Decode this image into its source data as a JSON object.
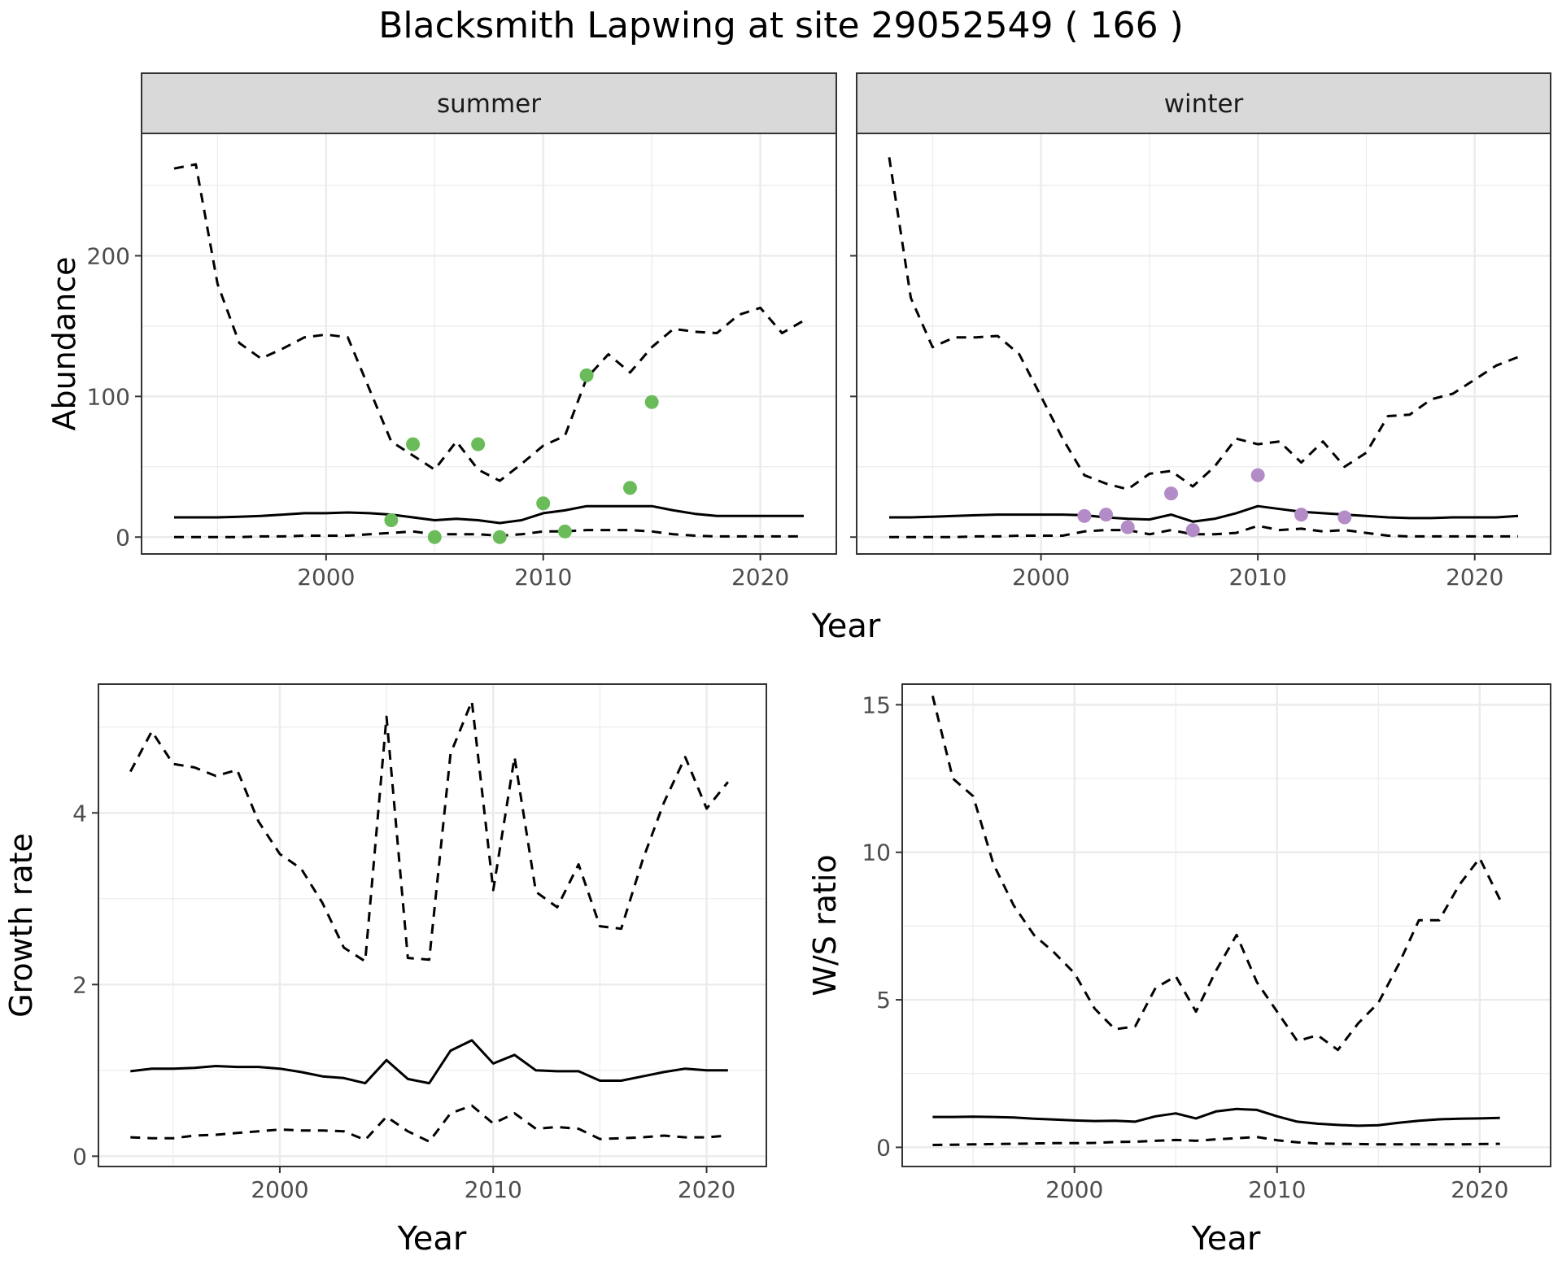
{
  "title": "Blacksmith Lapwing at site 29052549 ( 166 )",
  "colors": {
    "summer_points": "#6abb5a",
    "winter_points": "#b38bc6",
    "strip_bg": "#d9d9d9",
    "grid": "#ebebeb",
    "line": "#000000"
  },
  "chart_data": [
    {
      "type": "line",
      "facet": "summer",
      "strip_label": "summer",
      "xlabel": "Year",
      "ylabel": "Abundance",
      "xlim": [
        1991.5,
        2023.5
      ],
      "ylim": [
        -12,
        287
      ],
      "xticks": [
        2000,
        2010,
        2020
      ],
      "yticks": [
        0,
        100,
        200
      ],
      "grid": true,
      "series": [
        {
          "style": "solid",
          "x": [
            1993,
            1994,
            1995,
            1996,
            1997,
            1998,
            1999,
            2000,
            2001,
            2002,
            2003,
            2004,
            2005,
            2006,
            2007,
            2008,
            2009,
            2010,
            2011,
            2012,
            2013,
            2014,
            2015,
            2016,
            2017,
            2018,
            2019,
            2020,
            2021,
            2022
          ],
          "y": [
            14,
            14,
            14,
            14.5,
            15,
            16,
            17,
            17,
            17.5,
            17,
            16,
            14,
            12,
            13,
            12,
            10,
            12,
            17,
            19,
            22,
            22,
            22,
            22,
            19,
            16.5,
            15,
            15,
            15,
            15,
            15
          ]
        },
        {
          "style": "dashed",
          "x": [
            1993,
            1994,
            1995,
            1996,
            1997,
            1998,
            1999,
            2000,
            2001,
            2002,
            2003,
            2004,
            2005,
            2006,
            2007,
            2008,
            2009,
            2010,
            2011,
            2012,
            2013,
            2014,
            2015,
            2016,
            2017,
            2018,
            2019,
            2020,
            2021,
            2022
          ],
          "y": [
            262,
            265,
            180,
            138,
            127,
            134,
            142,
            144,
            142,
            105,
            68,
            58,
            48,
            68,
            48,
            40,
            52,
            65,
            72,
            113,
            130,
            117,
            135,
            148,
            146,
            145,
            158,
            163,
            145,
            154
          ]
        },
        {
          "style": "dashed",
          "x": [
            1993,
            1994,
            1995,
            1996,
            1997,
            1998,
            1999,
            2000,
            2001,
            2002,
            2003,
            2004,
            2005,
            2006,
            2007,
            2008,
            2009,
            2010,
            2011,
            2012,
            2013,
            2014,
            2015,
            2016,
            2017,
            2018,
            2019,
            2020,
            2021,
            2022
          ],
          "y": [
            0,
            0,
            0,
            0,
            0.5,
            0.5,
            1,
            1,
            1,
            2,
            3,
            4,
            2,
            2,
            2,
            1,
            2,
            4,
            4,
            5,
            5,
            5,
            4,
            2,
            1,
            0.5,
            0.5,
            0.5,
            0.5,
            0.5
          ]
        }
      ],
      "points": {
        "x": [
          2003,
          2004,
          2005,
          2007,
          2008,
          2010,
          2011,
          2012,
          2014,
          2015
        ],
        "y": [
          12,
          66,
          0,
          66,
          0,
          24,
          4,
          115,
          35,
          96
        ]
      }
    },
    {
      "type": "line",
      "facet": "winter",
      "strip_label": "winter",
      "xlabel": "Year",
      "ylabel": "Abundance",
      "xlim": [
        1991.5,
        2023.5
      ],
      "ylim": [
        -12,
        287
      ],
      "xticks": [
        2000,
        2010,
        2020
      ],
      "yticks": [
        0,
        100,
        200
      ],
      "grid": true,
      "series": [
        {
          "style": "solid",
          "x": [
            1993,
            1994,
            1995,
            1996,
            1997,
            1998,
            1999,
            2000,
            2001,
            2002,
            2003,
            2004,
            2005,
            2006,
            2007,
            2008,
            2009,
            2010,
            2011,
            2012,
            2013,
            2014,
            2015,
            2016,
            2017,
            2018,
            2019,
            2020,
            2021,
            2022
          ],
          "y": [
            14,
            14,
            14.5,
            15,
            15.5,
            16,
            16,
            16,
            16,
            15.5,
            14,
            13,
            12.5,
            16,
            11,
            13,
            17,
            22,
            20,
            18,
            17,
            16,
            15,
            14,
            13.5,
            13.5,
            14,
            14,
            14,
            15
          ]
        },
        {
          "style": "dashed",
          "x": [
            1993,
            1994,
            1995,
            1996,
            1997,
            1998,
            1999,
            2000,
            2001,
            2002,
            2003,
            2004,
            2005,
            2006,
            2007,
            2008,
            2009,
            2010,
            2011,
            2012,
            2013,
            2014,
            2015,
            2016,
            2017,
            2018,
            2019,
            2020,
            2021,
            2022
          ],
          "y": [
            270,
            170,
            135,
            142,
            142,
            143,
            130,
            100,
            70,
            44,
            38,
            34,
            45,
            47,
            36,
            50,
            70,
            66,
            68,
            53,
            68,
            50,
            60,
            86,
            87,
            98,
            102,
            112,
            122,
            128
          ]
        },
        {
          "style": "dashed",
          "x": [
            1993,
            1994,
            1995,
            1996,
            1997,
            1998,
            1999,
            2000,
            2001,
            2002,
            2003,
            2004,
            2005,
            2006,
            2007,
            2008,
            2009,
            2010,
            2011,
            2012,
            2013,
            2014,
            2015,
            2016,
            2017,
            2018,
            2019,
            2020,
            2021,
            2022
          ],
          "y": [
            0,
            0,
            0,
            0,
            0.5,
            0.5,
            1,
            1,
            1,
            4,
            5,
            5,
            2,
            5,
            2,
            2,
            3,
            8,
            5,
            6,
            4,
            5,
            3,
            1,
            0.5,
            0.5,
            0.5,
            0.5,
            0.5,
            0.5
          ]
        }
      ],
      "points": {
        "x": [
          2002,
          2003,
          2004,
          2006,
          2007,
          2010,
          2012,
          2014
        ],
        "y": [
          15,
          16,
          7,
          31,
          5,
          44,
          16,
          14
        ]
      }
    },
    {
      "type": "line",
      "xlabel": "Year",
      "ylabel": "Growth rate",
      "xlim": [
        1991.5,
        2022.8
      ],
      "ylim": [
        -0.12,
        5.5
      ],
      "xticks": [
        2000,
        2010,
        2020
      ],
      "yticks": [
        0,
        2,
        4
      ],
      "grid": true,
      "series": [
        {
          "style": "solid",
          "x": [
            1993,
            1994,
            1995,
            1996,
            1997,
            1998,
            1999,
            2000,
            2001,
            2002,
            2003,
            2004,
            2005,
            2006,
            2007,
            2008,
            2009,
            2010,
            2011,
            2012,
            2013,
            2014,
            2015,
            2016,
            2017,
            2018,
            2019,
            2020,
            2021
          ],
          "y": [
            0.99,
            1.02,
            1.02,
            1.03,
            1.05,
            1.04,
            1.04,
            1.02,
            0.98,
            0.93,
            0.91,
            0.85,
            1.12,
            0.9,
            0.85,
            1.23,
            1.35,
            1.08,
            1.18,
            1.0,
            0.99,
            0.99,
            0.88,
            0.88,
            0.93,
            0.98,
            1.02,
            1.0,
            1.0
          ]
        },
        {
          "style": "dashed",
          "x": [
            1993,
            1994,
            1995,
            1996,
            1997,
            1998,
            1999,
            2000,
            2001,
            2002,
            2003,
            2004,
            2005,
            2006,
            2007,
            2008,
            2009,
            2010,
            2011,
            2012,
            2013,
            2014,
            2015,
            2016,
            2017,
            2018,
            2019,
            2020,
            2021
          ],
          "y": [
            4.48,
            4.95,
            4.57,
            4.53,
            4.43,
            4.5,
            3.9,
            3.52,
            3.35,
            2.95,
            2.43,
            2.27,
            5.12,
            2.31,
            2.29,
            4.69,
            5.3,
            3.1,
            4.65,
            3.08,
            2.9,
            3.4,
            2.68,
            2.65,
            3.45,
            4.12,
            4.65,
            4.05,
            4.36
          ]
        },
        {
          "style": "dashed",
          "x": [
            1993,
            1994,
            1995,
            1996,
            1997,
            1998,
            1999,
            2000,
            2001,
            2002,
            2003,
            2004,
            2005,
            2006,
            2007,
            2008,
            2009,
            2010,
            2011,
            2012,
            2013,
            2014,
            2015,
            2016,
            2017,
            2018,
            2019,
            2020,
            2021
          ],
          "y": [
            0.22,
            0.21,
            0.21,
            0.24,
            0.25,
            0.27,
            0.29,
            0.31,
            0.3,
            0.3,
            0.29,
            0.19,
            0.46,
            0.29,
            0.17,
            0.5,
            0.59,
            0.38,
            0.5,
            0.32,
            0.34,
            0.32,
            0.2,
            0.21,
            0.22,
            0.24,
            0.22,
            0.22,
            0.24
          ]
        }
      ]
    },
    {
      "type": "line",
      "xlabel": "Year",
      "ylabel": "W/S ratio",
      "xlim": [
        1991.5,
        2023.5
      ],
      "ylim": [
        -0.65,
        15.7
      ],
      "xticks": [
        2000,
        2010,
        2020
      ],
      "yticks": [
        0,
        5,
        10,
        15
      ],
      "grid": true,
      "series": [
        {
          "style": "solid",
          "x": [
            1993,
            1994,
            1995,
            1996,
            1997,
            1998,
            1999,
            2000,
            2001,
            2002,
            2003,
            2004,
            2005,
            2006,
            2007,
            2008,
            2009,
            2010,
            2011,
            2012,
            2013,
            2014,
            2015,
            2016,
            2017,
            2018,
            2019,
            2020,
            2021
          ],
          "y": [
            1.03,
            1.03,
            1.04,
            1.03,
            1.01,
            0.97,
            0.94,
            0.91,
            0.89,
            0.9,
            0.87,
            1.05,
            1.15,
            0.98,
            1.22,
            1.3,
            1.27,
            1.05,
            0.87,
            0.8,
            0.76,
            0.73,
            0.75,
            0.83,
            0.9,
            0.95,
            0.97,
            0.98,
            1.0
          ]
        },
        {
          "style": "dashed",
          "x": [
            1993,
            1994,
            1995,
            1996,
            1997,
            1998,
            1999,
            2000,
            2001,
            2002,
            2003,
            2004,
            2005,
            2006,
            2007,
            2008,
            2009,
            2010,
            2011,
            2012,
            2013,
            2014,
            2015,
            2016,
            2017,
            2018,
            2019,
            2020,
            2021
          ],
          "y": [
            15.3,
            12.5,
            11.9,
            9.6,
            8.2,
            7.2,
            6.6,
            5.9,
            4.7,
            4.0,
            4.1,
            5.4,
            5.8,
            4.6,
            6.0,
            7.2,
            5.6,
            4.6,
            3.6,
            3.8,
            3.3,
            4.2,
            4.9,
            6.2,
            7.7,
            7.7,
            8.9,
            9.8,
            8.4
          ]
        },
        {
          "style": "dashed",
          "x": [
            1993,
            1994,
            1995,
            1996,
            1997,
            1998,
            1999,
            2000,
            2001,
            2002,
            2003,
            2004,
            2005,
            2006,
            2007,
            2008,
            2009,
            2010,
            2011,
            2012,
            2013,
            2014,
            2015,
            2016,
            2017,
            2018,
            2019,
            2020,
            2021
          ],
          "y": [
            0.08,
            0.09,
            0.1,
            0.11,
            0.12,
            0.13,
            0.14,
            0.14,
            0.15,
            0.18,
            0.19,
            0.22,
            0.25,
            0.22,
            0.27,
            0.31,
            0.35,
            0.24,
            0.17,
            0.13,
            0.12,
            0.11,
            0.1,
            0.1,
            0.1,
            0.1,
            0.1,
            0.11,
            0.12
          ]
        }
      ]
    }
  ]
}
